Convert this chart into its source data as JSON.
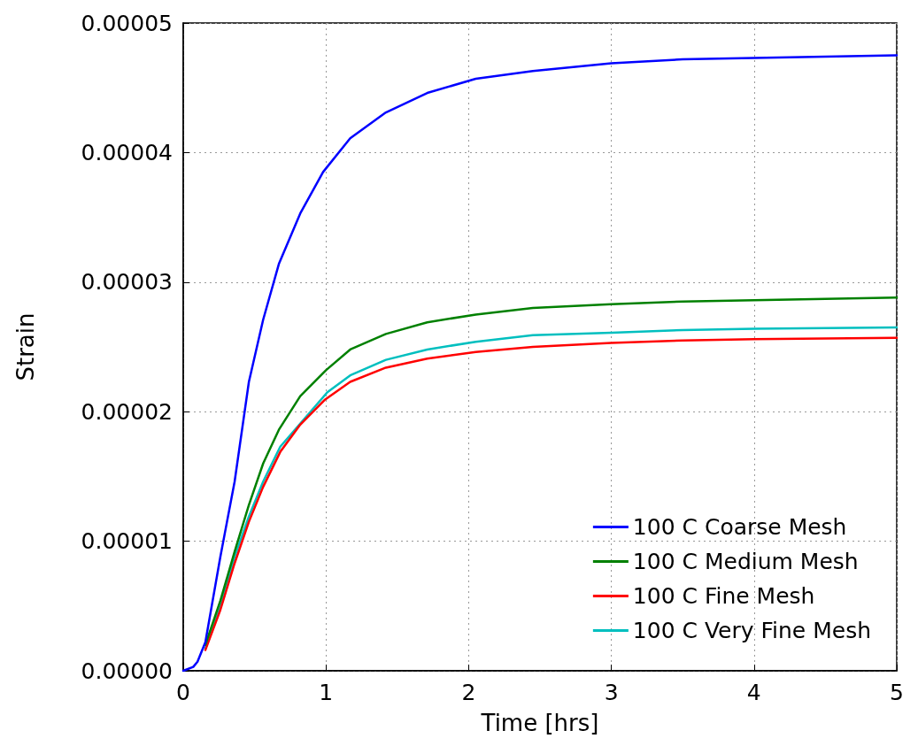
{
  "chart_data": {
    "type": "line",
    "xlabel": "Time [hrs]",
    "ylabel": "Strain",
    "xlim": [
      0,
      5
    ],
    "xticks": [
      0,
      1,
      2,
      3,
      4,
      5
    ],
    "ylim": [
      0,
      5e-05
    ],
    "yticks": [
      {
        "value": 0,
        "label": "0.00000"
      },
      {
        "value": 1e-05,
        "label": "0.00001"
      },
      {
        "value": 2e-05,
        "label": "0.00002"
      },
      {
        "value": 3e-05,
        "label": "0.00003"
      },
      {
        "value": 4e-05,
        "label": "0.00004"
      },
      {
        "value": 5e-05,
        "label": "0.00005"
      }
    ],
    "grid": true,
    "legend": "bottom right",
    "line_style": "solid",
    "marker": "none",
    "series": [
      {
        "name": "100 C Coarse Mesh",
        "color": "#0000ff",
        "x": [
          0,
          0.07,
          0.1,
          0.155,
          0.26,
          0.36,
          0.46,
          0.56,
          0.67,
          0.82,
          0.98,
          1.17,
          1.42,
          1.71,
          2.05,
          2.45,
          3,
          3.5,
          4,
          5
        ],
        "values": [
          0,
          3e-07,
          7e-07,
          2.2e-06,
          8.8e-06,
          1.46e-05,
          2.23e-05,
          2.71e-05,
          3.14e-05,
          3.53e-05,
          3.85e-05,
          4.11e-05,
          4.31e-05,
          4.46e-05,
          4.57e-05,
          4.63e-05,
          4.69e-05,
          4.72e-05,
          4.73e-05,
          4.75e-05
        ]
      },
      {
        "name": "100 C Medium Mesh",
        "color": "#008000",
        "x": [
          0.155,
          0.26,
          0.36,
          0.46,
          0.56,
          0.67,
          0.82,
          1.0,
          1.17,
          1.42,
          1.71,
          2.05,
          2.45,
          3,
          3.5,
          4,
          5
        ],
        "values": [
          2e-06,
          5.4e-06,
          9.2e-06,
          1.28e-05,
          1.6e-05,
          1.86e-05,
          2.12e-05,
          2.32e-05,
          2.48e-05,
          2.6e-05,
          2.69e-05,
          2.75e-05,
          2.8e-05,
          2.83e-05,
          2.85e-05,
          2.86e-05,
          2.88e-05
        ]
      },
      {
        "name": "100 C Fine Mesh",
        "color": "#ff0000",
        "x": [
          0.155,
          0.26,
          0.36,
          0.46,
          0.56,
          0.68,
          0.82,
          0.99,
          1.17,
          1.42,
          1.71,
          2.05,
          2.45,
          3,
          3.5,
          4,
          5
        ],
        "values": [
          1.6e-06,
          4.7e-06,
          8.3e-06,
          1.15e-05,
          1.42e-05,
          1.69e-05,
          1.9e-05,
          2.09e-05,
          2.23e-05,
          2.34e-05,
          2.41e-05,
          2.46e-05,
          2.5e-05,
          2.53e-05,
          2.55e-05,
          2.56e-05,
          2.57e-05
        ]
      },
      {
        "name": "100 C Very Fine Mesh",
        "color": "#00bfbf",
        "x": [
          0.155,
          0.26,
          0.36,
          0.46,
          0.56,
          0.68,
          0.83,
          1.01,
          1.17,
          1.42,
          1.71,
          2.05,
          2.45,
          3,
          3.5,
          4,
          5
        ],
        "values": [
          1.7e-06,
          4.9e-06,
          8.8e-06,
          1.19e-05,
          1.46e-05,
          1.73e-05,
          1.92e-05,
          2.15e-05,
          2.28e-05,
          2.4e-05,
          2.48e-05,
          2.54e-05,
          2.59e-05,
          2.61e-05,
          2.63e-05,
          2.64e-05,
          2.65e-05
        ]
      }
    ]
  }
}
